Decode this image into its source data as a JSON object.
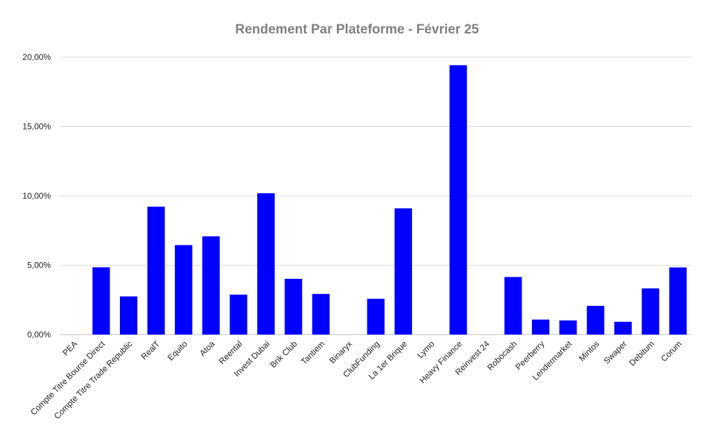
{
  "chart_data": {
    "type": "bar",
    "title": "Rendement Par Plateforme - Février 25",
    "xlabel": "",
    "ylabel": "",
    "ylim": [
      0,
      0.2
    ],
    "y_ticks": [
      0,
      0.05,
      0.1,
      0.15,
      0.2
    ],
    "y_tick_labels": [
      "0,00%",
      "5,00%",
      "10,00%",
      "15,00%",
      "20,00%"
    ],
    "grid": true,
    "legend": "none",
    "bar_color": "#0000ff",
    "categories": [
      "PEA",
      "Compte Titre Bourse Direct",
      "Compte Titre Trade Republic",
      "RealT",
      "Equito",
      "Atoa",
      "Reental",
      "Invest Dubai",
      "Brik Club",
      "Tantiem",
      "Binaryx",
      "ClubFunding",
      "La 1er Brique",
      "Lymo",
      "Heavy Finance",
      "Reinvest 24",
      "Robocash",
      "Peerberry",
      "Lendermarket",
      "Mintos",
      "Swaper",
      "Debitum",
      "Corum"
    ],
    "values": [
      0,
      0.0485,
      0.0275,
      0.0922,
      0.0645,
      0.0708,
      0.0288,
      0.1019,
      0.0402,
      0.0293,
      0,
      0.0258,
      0.091,
      0,
      0.1942,
      0,
      0.0415,
      0.0108,
      0.0102,
      0.0207,
      0.0092,
      0.0333,
      0.0484
    ]
  }
}
